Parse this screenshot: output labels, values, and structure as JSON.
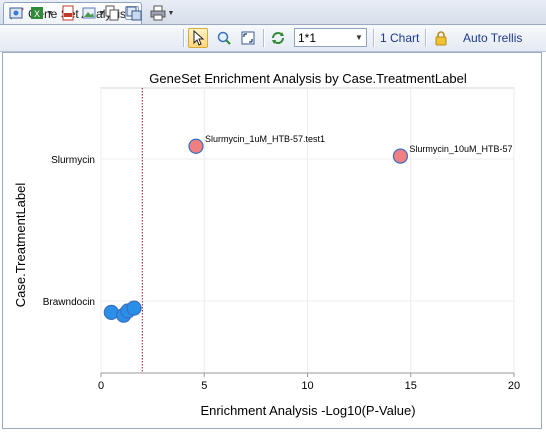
{
  "tab": {
    "label": "Gene Set Analysis",
    "close": "✕"
  },
  "toolbar": {
    "layout_value": "1*1",
    "chart_count_label": "1 Chart",
    "auto_trellis_label": "Auto Trellis"
  },
  "chart_data": {
    "type": "scatter",
    "title": "GeneSet Enrichment Analysis by Case.TreatmentLabel",
    "xlabel": "Enrichment Analysis -Log10(P-Value)",
    "ylabel": "Case.TreatmentLabel",
    "xlim": [
      0,
      20
    ],
    "xticks": [
      0,
      5,
      10,
      15,
      20
    ],
    "categories": [
      "Slurmycin",
      "Brawndocin"
    ],
    "threshold_x": 2,
    "grid": true,
    "points": [
      {
        "category": "Slurmycin",
        "x": 4.6,
        "offset": -0.09,
        "label": "Slurmycin_1uM_HTB-57.test1",
        "color": "#f08080"
      },
      {
        "category": "Slurmycin",
        "x": 14.5,
        "offset": -0.02,
        "label": "Slurmycin_10uM_HTB-57",
        "color": "#f08080"
      },
      {
        "category": "Brawndocin",
        "x": 0.5,
        "offset": 0.08,
        "label": "",
        "color": "#2a8fe8"
      },
      {
        "category": "Brawndocin",
        "x": 1.1,
        "offset": 0.1,
        "label": "",
        "color": "#2a8fe8"
      },
      {
        "category": "Brawndocin",
        "x": 1.3,
        "offset": 0.07,
        "label": "",
        "color": "#2a8fe8"
      },
      {
        "category": "Brawndocin",
        "x": 1.6,
        "offset": 0.05,
        "label": "",
        "color": "#2a8fe8"
      }
    ]
  }
}
